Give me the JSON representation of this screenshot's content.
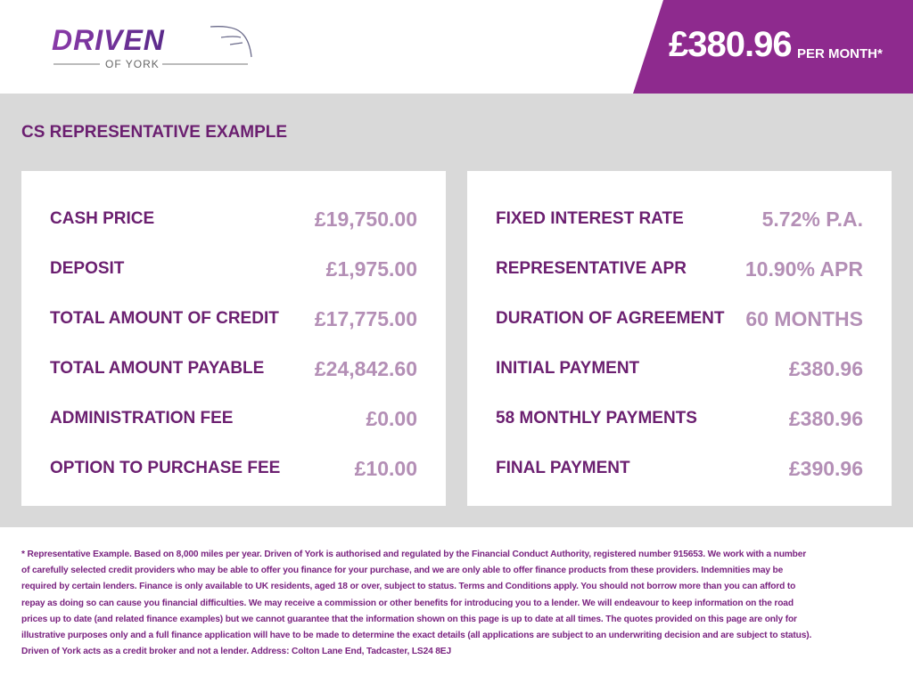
{
  "logo": {
    "brand": "DRIVEN",
    "sub": "OF YORK"
  },
  "badge": {
    "amount": "£380.96",
    "label": "PER MONTH*"
  },
  "section_title": "CS REPRESENTATIVE EXAMPLE",
  "left_rows": [
    {
      "label": "CASH PRICE",
      "value": "£19,750.00"
    },
    {
      "label": "DEPOSIT",
      "value": "£1,975.00"
    },
    {
      "label": "TOTAL AMOUNT OF CREDIT",
      "value": "£17,775.00"
    },
    {
      "label": "TOTAL AMOUNT PAYABLE",
      "value": "£24,842.60"
    },
    {
      "label": "ADMINISTRATION FEE",
      "value": "£0.00"
    },
    {
      "label": "OPTION TO PURCHASE FEE",
      "value": "£10.00"
    }
  ],
  "right_rows": [
    {
      "label": "FIXED INTEREST RATE",
      "value": "5.72% P.A."
    },
    {
      "label": "REPRESENTATIVE APR",
      "value": "10.90% APR"
    },
    {
      "label": "DURATION OF AGREEMENT",
      "value": "60 MONTHS"
    },
    {
      "label": "INITIAL PAYMENT",
      "value": "£380.96"
    },
    {
      "label": "58 MONTHLY PAYMENTS",
      "value": "£380.96"
    },
    {
      "label": "FINAL PAYMENT",
      "value": "£390.96"
    }
  ],
  "footer": "* Representative Example. Based on 8,000 miles per year. Driven of York is authorised and regulated by the Financial Conduct Authority, registered number 915653. We work with a number of carefully selected credit providers who may be able to offer you finance for your purchase, and we are only able to offer finance products from these providers. Indemnities may be required by certain lenders. Finance is only available to UK residents, aged 18 or over, subject to status. Terms and Conditions apply. You should not borrow more than you can afford to repay as doing so can cause you financial difficulties. We may receive a commission or other benefits for introducing you to a lender. We will endeavour to keep information on the road prices up to date (and related finance examples) but we cannot guarantee that the information shown on this page is up to date at all times. The quotes provided on this page are only for illustrative purposes only and a full finance application will have to be made to determine the exact details (all applications are subject to an underwriting decision and are subject to status). Driven of York acts as a credit broker and not a lender. Address: Colton Lane End, Tadcaster, LS24 8EJ",
  "colors": {
    "brand": "#8e2a8e",
    "label": "#6b1f70",
    "value": "#b48fb6",
    "band": "#d9d9d9"
  }
}
